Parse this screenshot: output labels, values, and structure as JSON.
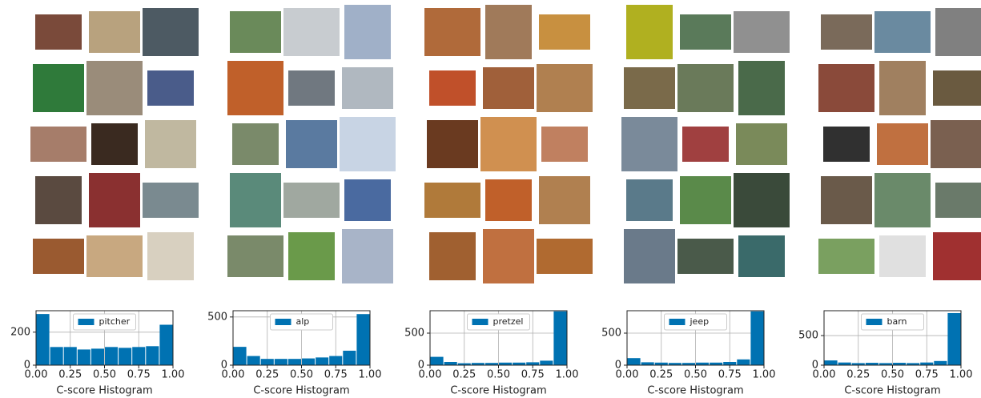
{
  "chart_data": [
    {
      "type": "histogram",
      "bins": [
        0,
        0.1,
        0.2,
        0.3,
        0.4,
        0.5,
        0.6,
        0.7,
        0.8,
        0.9,
        1.0
      ],
      "series": [
        {
          "name": "pitcher",
          "color": "#0072b2",
          "values": [
            310,
            110,
            110,
            95,
            100,
            110,
            105,
            110,
            115,
            245
          ]
        }
      ],
      "xlabel": "C-score Histogram",
      "xlim": [
        0,
        1
      ],
      "xticks": [
        {
          "value": 0,
          "label": "0.00"
        },
        {
          "value": 0.25,
          "label": "0.25"
        },
        {
          "value": 0.5,
          "label": "0.50"
        },
        {
          "value": 0.75,
          "label": "0.75"
        },
        {
          "value": 1,
          "label": "1.00"
        }
      ],
      "ylim": [
        0,
        330
      ],
      "yticks": [
        0,
        200
      ],
      "grid": true,
      "legend": "upper center"
    },
    {
      "type": "histogram",
      "bins": [
        0,
        0.1,
        0.2,
        0.3,
        0.4,
        0.5,
        0.6,
        0.7,
        0.8,
        0.9,
        1.0
      ],
      "series": [
        {
          "name": "alp",
          "color": "#0072b2",
          "values": [
            190,
            95,
            65,
            65,
            65,
            70,
            80,
            95,
            150,
            530
          ]
        }
      ],
      "xlabel": "C-score Histogram",
      "xlim": [
        0,
        1
      ],
      "xticks": [
        {
          "value": 0,
          "label": "0.00"
        },
        {
          "value": 0.25,
          "label": "0.25"
        },
        {
          "value": 0.5,
          "label": "0.50"
        },
        {
          "value": 0.75,
          "label": "0.75"
        },
        {
          "value": 1,
          "label": "1.00"
        }
      ],
      "ylim": [
        0,
        565
      ],
      "yticks": [
        0,
        500
      ],
      "grid": true,
      "legend": "upper center"
    },
    {
      "type": "histogram",
      "bins": [
        0,
        0.1,
        0.2,
        0.3,
        0.4,
        0.5,
        0.6,
        0.7,
        0.8,
        0.9,
        1.0
      ],
      "series": [
        {
          "name": "pretzel",
          "color": "#0072b2",
          "values": [
            130,
            50,
            30,
            35,
            35,
            40,
            40,
            45,
            70,
            840
          ]
        }
      ],
      "xlabel": "C-score Histogram",
      "xlim": [
        0,
        1
      ],
      "xticks": [
        {
          "value": 0,
          "label": "0.00"
        },
        {
          "value": 0.25,
          "label": "0.25"
        },
        {
          "value": 0.5,
          "label": "0.50"
        },
        {
          "value": 0.75,
          "label": "0.75"
        },
        {
          "value": 1,
          "label": "1.00"
        }
      ],
      "ylim": [
        0,
        850
      ],
      "yticks": [
        0,
        500
      ],
      "grid": true,
      "legend": "upper center"
    },
    {
      "type": "histogram",
      "bins": [
        0,
        0.1,
        0.2,
        0.3,
        0.4,
        0.5,
        0.6,
        0.7,
        0.8,
        0.9,
        1.0
      ],
      "series": [
        {
          "name": "jeep",
          "color": "#0072b2",
          "values": [
            110,
            45,
            40,
            35,
            35,
            40,
            40,
            50,
            90,
            840
          ]
        }
      ],
      "xlabel": "C-score Histogram",
      "xlim": [
        0,
        1
      ],
      "xticks": [
        {
          "value": 0,
          "label": "0.00"
        },
        {
          "value": 0.25,
          "label": "0.25"
        },
        {
          "value": 0.5,
          "label": "0.50"
        },
        {
          "value": 0.75,
          "label": "0.75"
        },
        {
          "value": 1,
          "label": "1.00"
        }
      ],
      "ylim": [
        0,
        850
      ],
      "yticks": [
        0,
        500
      ],
      "grid": true,
      "legend": "upper center"
    },
    {
      "type": "histogram",
      "bins": [
        0,
        0.1,
        0.2,
        0.3,
        0.4,
        0.5,
        0.6,
        0.7,
        0.8,
        0.9,
        1.0
      ],
      "series": [
        {
          "name": "barn",
          "color": "#0072b2",
          "values": [
            80,
            45,
            35,
            40,
            35,
            40,
            35,
            45,
            70,
            880
          ]
        }
      ],
      "xlabel": "C-score Histogram",
      "xlim": [
        0,
        1
      ],
      "xticks": [
        {
          "value": 0,
          "label": "0.00"
        },
        {
          "value": 0.25,
          "label": "0.25"
        },
        {
          "value": 0.5,
          "label": "0.50"
        },
        {
          "value": 0.75,
          "label": "0.75"
        },
        {
          "value": 1,
          "label": "1.00"
        }
      ],
      "ylim": [
        0,
        920
      ],
      "yticks": [
        0,
        500
      ],
      "grid": true,
      "legend": "upper center"
    }
  ]
}
